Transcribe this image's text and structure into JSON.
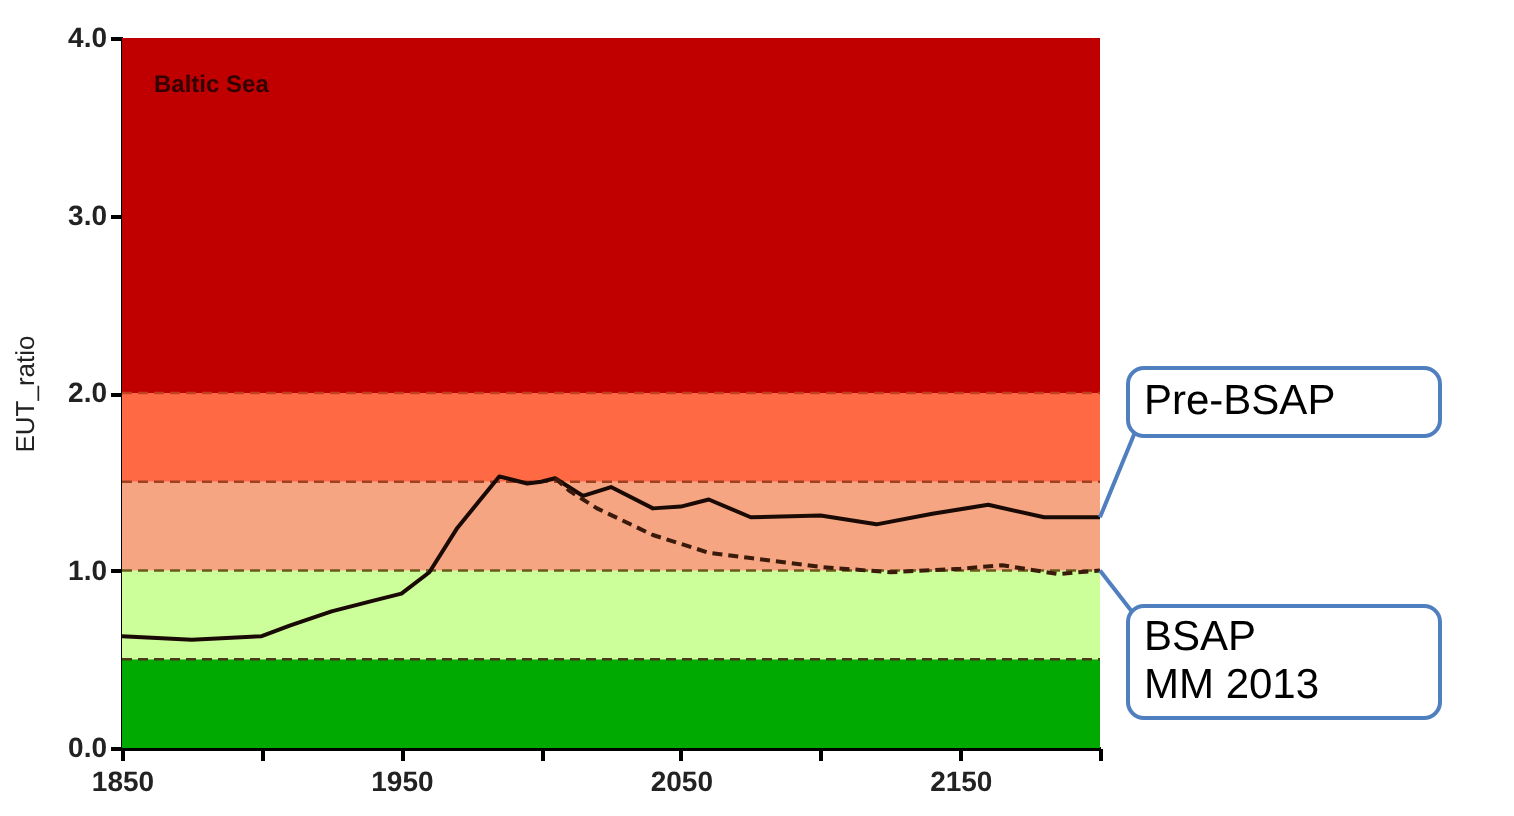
{
  "chart_data": {
    "type": "line",
    "title": "Baltic Sea",
    "ylabel": "EUT_ratio",
    "xlim": [
      1850,
      2200
    ],
    "xticks": [
      1850,
      {
        "value": 1900,
        "label": null
      },
      1950,
      {
        "value": 2000,
        "label": null
      },
      2050,
      {
        "value": 2100,
        "label": null
      },
      2150,
      {
        "value": 2200,
        "label": null
      }
    ],
    "ylim": [
      0,
      4
    ],
    "yticks": [
      {
        "value": 0,
        "label": "0.0"
      },
      {
        "value": 1,
        "label": "1.0"
      },
      {
        "value": 2,
        "label": "2.0"
      },
      {
        "value": 3,
        "label": "3.0"
      },
      {
        "value": 4,
        "label": "4.0"
      }
    ],
    "grid": false,
    "bands": [
      {
        "axis": "y",
        "from": 0,
        "to": 0.5,
        "color": "#00aa00"
      },
      {
        "axis": "y",
        "from": 0.5,
        "to": 1.0,
        "color": "#ccff99"
      },
      {
        "axis": "y",
        "from": 1.0,
        "to": 1.5,
        "color": "#f5a582"
      },
      {
        "axis": "y",
        "from": 1.5,
        "to": 2.0,
        "color": "#ff6a45"
      },
      {
        "axis": "y",
        "from": 2.0,
        "to": 4.0,
        "color": "#c00000"
      }
    ],
    "ref_lines": [
      {
        "axis": "y",
        "value": 0.5,
        "color": "#4a3a1a",
        "line_style": "dashed"
      },
      {
        "axis": "y",
        "value": 1.0,
        "color": "#6a5a1a",
        "line_style": "dashed"
      },
      {
        "axis": "y",
        "value": 1.5,
        "color": "#a04020",
        "line_style": "dashed"
      },
      {
        "axis": "y",
        "value": 2.0,
        "color": "#c04020",
        "line_style": "dashed"
      }
    ],
    "series": [
      {
        "name": "Pre-BSAP",
        "color": "#1a0a05",
        "line_style": "solid",
        "x": [
          1850,
          1875,
          1900,
          1910,
          1925,
          1940,
          1950,
          1960,
          1970,
          1985,
          1995,
          2000,
          2005,
          2015,
          2025,
          2040,
          2050,
          2060,
          2075,
          2100,
          2120,
          2140,
          2160,
          2180,
          2200
        ],
        "values": [
          0.63,
          0.61,
          0.63,
          0.69,
          0.77,
          0.83,
          0.87,
          0.99,
          1.24,
          1.53,
          1.49,
          1.5,
          1.52,
          1.42,
          1.47,
          1.35,
          1.36,
          1.4,
          1.3,
          1.31,
          1.26,
          1.32,
          1.37,
          1.3,
          1.3
        ]
      },
      {
        "name": "BSAP MM 2013",
        "color": "#3a1a0a",
        "line_style": "dashed",
        "x": [
          2005,
          2010,
          2020,
          2040,
          2050,
          2060,
          2075,
          2100,
          2125,
          2150,
          2165,
          2185,
          2200
        ],
        "values": [
          1.52,
          1.45,
          1.35,
          1.2,
          1.15,
          1.1,
          1.07,
          1.02,
          0.99,
          1.01,
          1.03,
          0.98,
          1.0
        ]
      }
    ]
  }
}
